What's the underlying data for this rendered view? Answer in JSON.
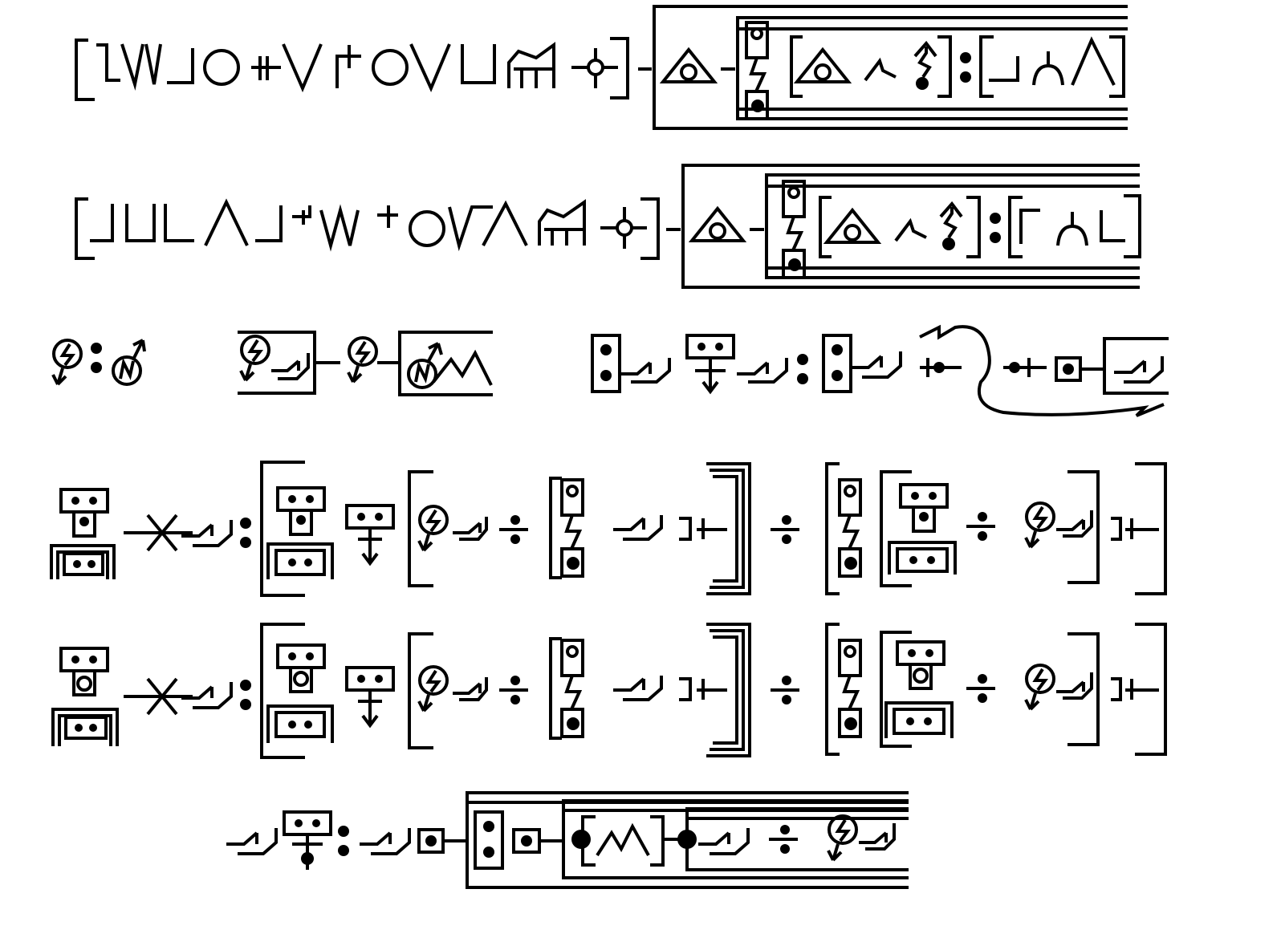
{
  "page": {
    "kind": "glyph script sample sheet (no legible text)",
    "ink_color": "#000000",
    "background_color": "#ffffff"
  },
  "lines": [
    {
      "glyph_style": "phonetic-run",
      "has_outer_frame": true
    },
    {
      "glyph_style": "phonetic-run",
      "has_outer_frame": true
    },
    {
      "glyph_style": "mixed-symbols",
      "has_outer_frame": false
    },
    {
      "glyph_style": "nested-frames",
      "has_outer_frame": false
    },
    {
      "glyph_style": "nested-frames",
      "has_outer_frame": false
    },
    {
      "glyph_style": "framed-chain",
      "has_outer_frame": true
    }
  ]
}
